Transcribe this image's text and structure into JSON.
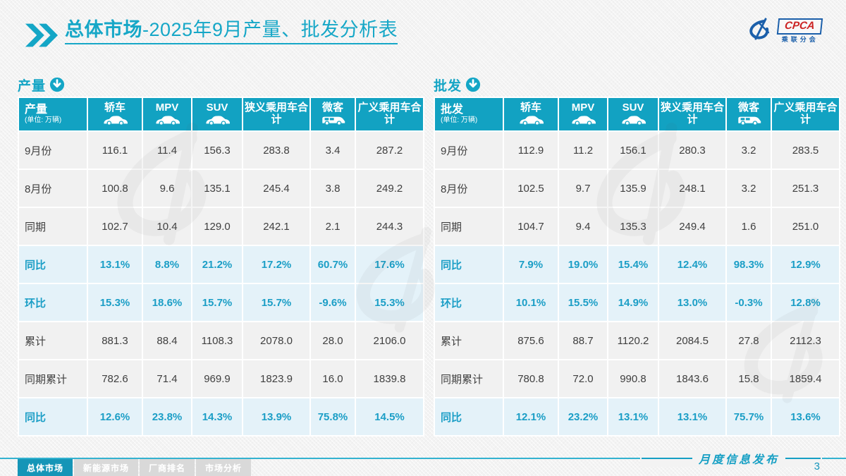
{
  "title": {
    "bold": "总体市场",
    "rest": "-2025年9月产量、批发分析表"
  },
  "logo": {
    "name": "CPCA",
    "caption": "乘联分会"
  },
  "tables": [
    {
      "section_title": "产量",
      "unit_label": "(单位: 万辆)",
      "columns": [
        {
          "label": "轿车",
          "icon": "sedan-icon"
        },
        {
          "label": "MPV",
          "icon": "mpv-icon"
        },
        {
          "label": "SUV",
          "icon": "suv-icon"
        },
        {
          "label": "狭义乘用车合计",
          "icon": null
        },
        {
          "label": "微客",
          "icon": "van-icon"
        },
        {
          "label": "广义乘用车合计",
          "icon": null
        }
      ],
      "rows": [
        {
          "label": "9月份",
          "type": "data",
          "values": [
            "116.1",
            "11.4",
            "156.3",
            "283.8",
            "3.4",
            "287.2"
          ]
        },
        {
          "label": "8月份",
          "type": "data",
          "values": [
            "100.8",
            "9.6",
            "135.1",
            "245.4",
            "3.8",
            "249.2"
          ]
        },
        {
          "label": "同期",
          "type": "data",
          "values": [
            "102.7",
            "10.4",
            "129.0",
            "242.1",
            "2.1",
            "244.3"
          ]
        },
        {
          "label": "同比",
          "type": "pct",
          "values": [
            "13.1%",
            "8.8%",
            "21.2%",
            "17.2%",
            "60.7%",
            "17.6%"
          ]
        },
        {
          "label": "环比",
          "type": "pct",
          "values": [
            "15.3%",
            "18.6%",
            "15.7%",
            "15.7%",
            "-9.6%",
            "15.3%"
          ]
        },
        {
          "label": "累计",
          "type": "data",
          "values": [
            "881.3",
            "88.4",
            "1108.3",
            "2078.0",
            "28.0",
            "2106.0"
          ]
        },
        {
          "label": "同期累计",
          "type": "data",
          "values": [
            "782.6",
            "71.4",
            "969.9",
            "1823.9",
            "16.0",
            "1839.8"
          ]
        },
        {
          "label": "同比",
          "type": "pct",
          "values": [
            "12.6%",
            "23.8%",
            "14.3%",
            "13.9%",
            "75.8%",
            "14.5%"
          ]
        }
      ]
    },
    {
      "section_title": "批发",
      "unit_label": "(单位: 万辆)",
      "columns": [
        {
          "label": "轿车",
          "icon": "sedan-icon"
        },
        {
          "label": "MPV",
          "icon": "mpv-icon"
        },
        {
          "label": "SUV",
          "icon": "suv-icon"
        },
        {
          "label": "狭义乘用车合计",
          "icon": null
        },
        {
          "label": "微客",
          "icon": "van-icon"
        },
        {
          "label": "广义乘用车合计",
          "icon": null
        }
      ],
      "rows": [
        {
          "label": "9月份",
          "type": "data",
          "values": [
            "112.9",
            "11.2",
            "156.1",
            "280.3",
            "3.2",
            "283.5"
          ]
        },
        {
          "label": "8月份",
          "type": "data",
          "values": [
            "102.5",
            "9.7",
            "135.9",
            "248.1",
            "3.2",
            "251.3"
          ]
        },
        {
          "label": "同期",
          "type": "data",
          "values": [
            "104.7",
            "9.4",
            "135.3",
            "249.4",
            "1.6",
            "251.0"
          ]
        },
        {
          "label": "同比",
          "type": "pct",
          "values": [
            "7.9%",
            "19.0%",
            "15.4%",
            "12.4%",
            "98.3%",
            "12.9%"
          ]
        },
        {
          "label": "环比",
          "type": "pct",
          "values": [
            "10.1%",
            "15.5%",
            "14.9%",
            "13.0%",
            "-0.3%",
            "12.8%"
          ]
        },
        {
          "label": "累计",
          "type": "data",
          "values": [
            "875.6",
            "88.7",
            "1120.2",
            "2084.5",
            "27.8",
            "2112.3"
          ]
        },
        {
          "label": "同期累计",
          "type": "data",
          "values": [
            "780.8",
            "72.0",
            "990.8",
            "1843.6",
            "15.8",
            "1859.4"
          ]
        },
        {
          "label": "同比",
          "type": "pct",
          "values": [
            "12.1%",
            "23.2%",
            "13.1%",
            "13.1%",
            "75.7%",
            "13.6%"
          ]
        }
      ]
    }
  ],
  "footer": {
    "tabs": [
      {
        "label": "总体市场",
        "active": true
      },
      {
        "label": "新能源市场",
        "active": false
      },
      {
        "label": "厂商排名",
        "active": false
      },
      {
        "label": "市场分析",
        "active": false
      }
    ],
    "caption": "月度信息发布",
    "page": "3"
  },
  "colors": {
    "accent_teal": "#12a2c2",
    "highlight_row": "#e4f2f9",
    "pct_text": "#1b9ec6",
    "logo_blue": "#1b5faa",
    "logo_red": "#cc2222"
  }
}
